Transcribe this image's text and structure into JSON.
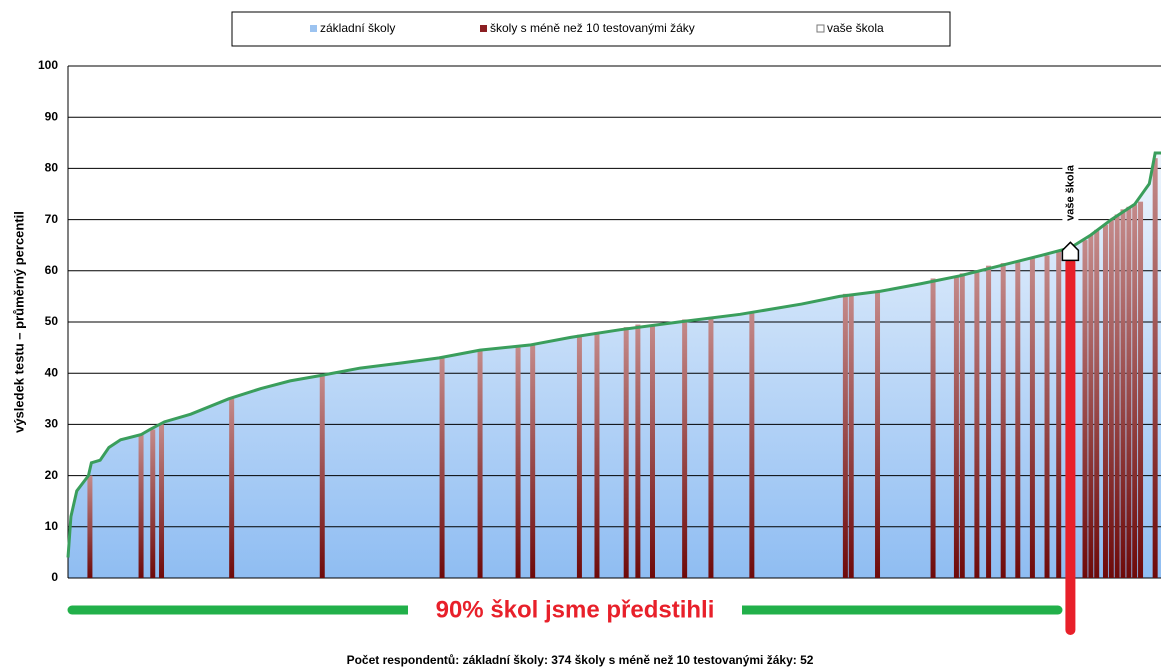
{
  "chart_data": {
    "type": "area",
    "ylabel": "výsledek testu – průměrný percentil",
    "xlim": [
      0,
      374
    ],
    "ylim": [
      0,
      100
    ],
    "yticks": [
      0,
      10,
      20,
      30,
      40,
      50,
      60,
      70,
      80,
      90,
      100
    ],
    "grid": true,
    "line_color": "#3a9e5c",
    "series": [
      {
        "name": "základní školy",
        "color": "#9cc3f0",
        "x": [
          0,
          1,
          3,
          7,
          8,
          11,
          14,
          18,
          25,
          28,
          33,
          42,
          55,
          66,
          76,
          86,
          100,
          114,
          127,
          141,
          158,
          172,
          189,
          209,
          230,
          251,
          264,
          278,
          292,
          305,
          319,
          333,
          343,
          350,
          357,
          365,
          370,
          372,
          374
        ],
        "values": [
          4,
          12,
          17,
          20,
          22.5,
          23,
          25.5,
          27,
          28,
          29,
          30.5,
          32,
          35,
          37,
          38.5,
          39.5,
          41,
          42,
          43,
          44.5,
          45.5,
          47,
          48.5,
          50,
          51.5,
          53.5,
          55,
          56,
          57.5,
          59,
          61,
          63,
          64.5,
          67,
          70,
          73,
          77,
          83,
          83
        ]
      },
      {
        "name": "školy s méně než 10 testovanými žáky",
        "color": "#8b1e22",
        "x": [
          7.5,
          25,
          29,
          32,
          56,
          87,
          128,
          141,
          154,
          159,
          175,
          181,
          191,
          195,
          200,
          211,
          220,
          234,
          266,
          268,
          277,
          296,
          304,
          306,
          311,
          315,
          320,
          325,
          330,
          335,
          339,
          348,
          350,
          352,
          355,
          357,
          359,
          361,
          363,
          365,
          367,
          372
        ],
        "values": [
          20,
          28,
          29,
          30,
          35,
          39.5,
          43,
          44.5,
          45,
          45.5,
          47.5,
          48,
          49,
          49.5,
          49.5,
          50.5,
          51,
          52,
          55.5,
          55.5,
          56,
          58.5,
          59,
          59.5,
          60,
          61,
          61.5,
          62,
          62.5,
          63,
          64,
          66,
          67,
          68,
          69,
          70,
          71,
          72,
          72.5,
          73,
          73.5,
          82
        ]
      },
      {
        "name": "vaše škola",
        "color": "#e8202a",
        "x": [
          343
        ],
        "values": [
          64
        ]
      }
    ],
    "annotations": [
      "vaše škola",
      "90% škol jsme předstihli",
      "Počet respondentů:  základní školy: 374     školy s méně než 10 testovanými žáky: 52"
    ]
  }
}
